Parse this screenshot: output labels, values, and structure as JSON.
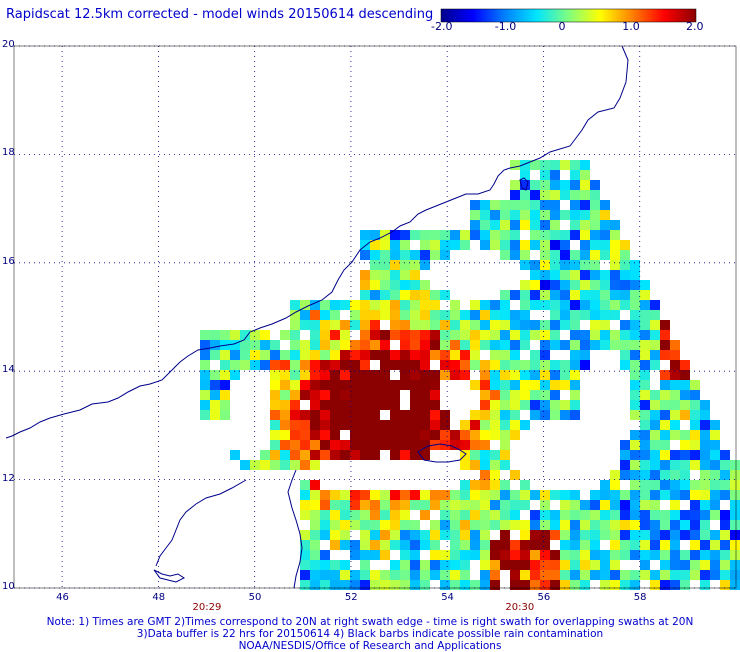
{
  "title": "Rapidscat 12.5km corrected - model winds 20150614 descending",
  "colorbar": {
    "ticks": [
      "-2.0",
      "-1.0",
      "0",
      "1.0",
      "2.0"
    ],
    "tick_values": [
      -2.0,
      -1.0,
      0,
      1.0,
      2.0
    ],
    "stops": [
      "#00008b",
      "#0000ff",
      "#0080ff",
      "#00e5ff",
      "#7fff7f",
      "#ffff00",
      "#ff8000",
      "#ff0000",
      "#8b0000"
    ]
  },
  "axes": {
    "x_ticks": [
      "46",
      "48",
      "50",
      "52",
      "54",
      "56",
      "58"
    ],
    "x_tick_values": [
      46,
      48,
      50,
      52,
      54,
      56,
      58
    ],
    "y_ticks": [
      "10",
      "12",
      "14",
      "16",
      "18",
      "20"
    ],
    "y_tick_values": [
      10,
      12,
      14,
      16,
      18,
      20
    ],
    "xlim": [
      45,
      60
    ],
    "ylim": [
      10,
      20
    ],
    "grid": "dotted",
    "time_labels": [
      "20:29",
      "20:30"
    ],
    "time_label_lons": [
      49.0,
      55.5
    ]
  },
  "notes": {
    "line1": "Note: 1) Times are GMT 2)Times correspond to 20N at right swath edge - time is right swath for overlapping swaths at 20N",
    "line2": "3)Data buffer is 22 hrs for 20150614 4) Black barbs indicate possible rain contamination",
    "line3": "NOAA/NESDIS/Office of Research and Applications"
  }
}
